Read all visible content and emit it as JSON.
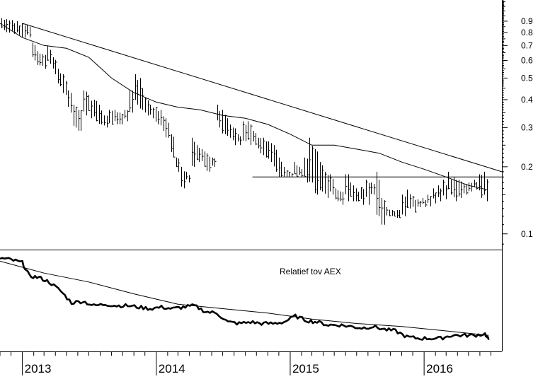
{
  "chart_data": [
    {
      "type": "line",
      "subtype": "ohlc-bars-log-price",
      "title": "",
      "xlabel": "",
      "ylabel": "",
      "y_scale": "log",
      "y_axis_side": "right",
      "ylim": [
        0.085,
        1.12
      ],
      "y_ticks": [
        0.1,
        0.2,
        0.3,
        0.4,
        0.5,
        0.6,
        0.7,
        0.8,
        0.9
      ],
      "y_tick_labels": [
        "0.1",
        "0.2",
        "0.3",
        "0.4",
        "0.5",
        "0.6",
        "0.7",
        "0.8",
        "0.9"
      ],
      "xlim": [
        "2012-11-01",
        "2016-07-31"
      ],
      "x_tick_labels": [
        "2013",
        "2014",
        "2015",
        "2016"
      ],
      "x_tick_dates": [
        "2013-01-01",
        "2014-01-01",
        "2015-01-01",
        "2016-01-01"
      ],
      "grid": false,
      "series": [
        {
          "style": "ohlc-bars",
          "x": [
            "2012-11-05",
            "2012-11-19",
            "2012-12-03",
            "2012-12-17",
            "2012-12-31",
            "2013-01-14",
            "2013-01-28",
            "2013-02-11",
            "2013-02-25",
            "2013-03-11",
            "2013-03-25",
            "2013-04-08",
            "2013-04-22",
            "2013-05-06",
            "2013-05-20",
            "2013-06-03",
            "2013-06-17",
            "2013-07-01",
            "2013-07-15",
            "2013-07-29",
            "2013-08-12",
            "2013-08-26",
            "2013-09-09",
            "2013-09-23",
            "2013-10-07",
            "2013-10-21",
            "2013-11-04",
            "2013-11-18",
            "2013-12-02",
            "2013-12-16",
            "2013-12-30",
            "2014-01-13",
            "2014-01-27",
            "2014-02-10",
            "2014-02-24",
            "2014-03-10",
            "2014-03-24",
            "2014-04-07",
            "2014-04-21",
            "2014-05-05",
            "2014-05-19",
            "2014-06-02",
            "2014-06-16",
            "2014-06-30",
            "2014-07-14",
            "2014-07-28",
            "2014-08-11",
            "2014-08-25",
            "2014-09-08",
            "2014-09-22",
            "2014-10-06",
            "2014-10-20",
            "2014-11-03",
            "2014-11-17",
            "2014-12-01",
            "2014-12-15",
            "2014-12-29",
            "2015-01-12",
            "2015-01-26",
            "2015-02-09",
            "2015-02-23",
            "2015-03-09",
            "2015-03-23",
            "2015-04-06",
            "2015-04-20",
            "2015-05-04",
            "2015-05-18",
            "2015-06-01",
            "2015-06-15",
            "2015-06-29",
            "2015-07-13",
            "2015-07-27",
            "2015-08-10",
            "2015-08-24",
            "2015-09-07",
            "2015-09-21",
            "2015-10-05",
            "2015-10-19",
            "2015-11-02",
            "2015-11-16",
            "2015-11-30",
            "2015-12-14",
            "2015-12-28",
            "2016-01-11",
            "2016-01-25",
            "2016-02-08",
            "2016-02-22",
            "2016-03-07",
            "2016-03-21",
            "2016-04-04",
            "2016-04-18",
            "2016-05-02",
            "2016-05-16",
            "2016-05-30",
            "2016-06-13"
          ],
          "high": [
            0.93,
            0.92,
            0.91,
            0.9,
            0.88,
            0.87,
            0.72,
            0.66,
            0.64,
            0.7,
            0.62,
            0.55,
            0.52,
            0.44,
            0.38,
            0.36,
            0.44,
            0.42,
            0.4,
            0.38,
            0.34,
            0.36,
            0.36,
            0.35,
            0.36,
            0.44,
            0.52,
            0.5,
            0.41,
            0.38,
            0.37,
            0.36,
            0.33,
            0.28,
            0.22,
            0.2,
            0.19,
            0.27,
            0.25,
            0.24,
            0.23,
            0.22,
            0.38,
            0.36,
            0.33,
            0.3,
            0.28,
            0.32,
            0.32,
            0.29,
            0.27,
            0.27,
            0.26,
            0.25,
            0.22,
            0.2,
            0.19,
            0.21,
            0.2,
            0.22,
            0.27,
            0.24,
            0.21,
            0.19,
            0.185,
            0.16,
            0.155,
            0.185,
            0.17,
            0.16,
            0.162,
            0.175,
            0.17,
            0.19,
            0.145,
            0.132,
            0.128,
            0.128,
            0.15,
            0.158,
            0.148,
            0.143,
            0.145,
            0.15,
            0.16,
            0.165,
            0.175,
            0.19,
            0.18,
            0.175,
            0.168,
            0.17,
            0.175,
            0.185,
            0.19
          ],
          "low": [
            0.82,
            0.8,
            0.79,
            0.78,
            0.76,
            0.76,
            0.6,
            0.57,
            0.55,
            0.58,
            0.52,
            0.46,
            0.42,
            0.35,
            0.3,
            0.29,
            0.34,
            0.33,
            0.32,
            0.31,
            0.3,
            0.31,
            0.31,
            0.31,
            0.32,
            0.35,
            0.38,
            0.36,
            0.34,
            0.33,
            0.31,
            0.29,
            0.27,
            0.22,
            0.19,
            0.16,
            0.17,
            0.2,
            0.21,
            0.2,
            0.19,
            0.2,
            0.3,
            0.28,
            0.27,
            0.25,
            0.25,
            0.26,
            0.25,
            0.25,
            0.23,
            0.22,
            0.21,
            0.19,
            0.18,
            0.18,
            0.18,
            0.18,
            0.18,
            0.17,
            0.17,
            0.15,
            0.155,
            0.145,
            0.15,
            0.14,
            0.135,
            0.14,
            0.14,
            0.14,
            0.135,
            0.135,
            0.15,
            0.12,
            0.11,
            0.12,
            0.12,
            0.118,
            0.12,
            0.13,
            0.125,
            0.132,
            0.132,
            0.133,
            0.137,
            0.14,
            0.143,
            0.15,
            0.14,
            0.145,
            0.15,
            0.155,
            0.158,
            0.145,
            0.14
          ]
        },
        {
          "style": "moving-average",
          "x": [
            "2012-11-01",
            "2013-01-01",
            "2013-03-01",
            "2013-05-01",
            "2013-07-01",
            "2013-09-01",
            "2013-11-01",
            "2014-01-01",
            "2014-03-01",
            "2014-05-01",
            "2014-07-01",
            "2014-09-01",
            "2014-11-01",
            "2015-01-01",
            "2015-03-01",
            "2015-05-01",
            "2015-07-01",
            "2015-09-01",
            "2015-11-01",
            "2016-01-01",
            "2016-03-01",
            "2016-05-01",
            "2016-06-20"
          ],
          "y": [
            0.88,
            0.76,
            0.7,
            0.68,
            0.62,
            0.5,
            0.43,
            0.39,
            0.37,
            0.36,
            0.34,
            0.33,
            0.31,
            0.28,
            0.25,
            0.25,
            0.24,
            0.23,
            0.21,
            0.195,
            0.18,
            0.165,
            0.158
          ]
        }
      ],
      "trendlines": [
        {
          "x": [
            "2013-01-01",
            "2016-07-31"
          ],
          "y": [
            0.88,
            0.19
          ]
        },
        {
          "x": [
            "2014-09-20",
            "2016-07-31"
          ],
          "y": [
            0.18,
            0.18
          ]
        }
      ]
    },
    {
      "type": "line",
      "title": "",
      "annotation": "Relatief tov AEX",
      "xlim": [
        "2012-11-01",
        "2016-07-31"
      ],
      "y_axis_visible": false,
      "grid": false,
      "series": [
        {
          "style": "thick",
          "x": [
            "2012-11-01",
            "2012-12-01",
            "2013-01-01",
            "2013-01-20",
            "2013-02-15",
            "2013-03-15",
            "2013-04-15",
            "2013-05-15",
            "2013-06-15",
            "2013-07-15",
            "2013-08-15",
            "2013-09-15",
            "2013-10-15",
            "2013-11-15",
            "2013-12-15",
            "2014-01-15",
            "2014-02-15",
            "2014-03-15",
            "2014-04-15",
            "2014-05-15",
            "2014-06-15",
            "2014-07-15",
            "2014-08-15",
            "2014-09-15",
            "2014-10-15",
            "2014-11-15",
            "2014-12-15",
            "2015-01-15",
            "2015-02-15",
            "2015-03-15",
            "2015-04-15",
            "2015-05-15",
            "2015-06-15",
            "2015-07-15",
            "2015-08-15",
            "2015-09-15",
            "2015-10-15",
            "2015-11-15",
            "2015-12-15",
            "2016-01-15",
            "2016-02-15",
            "2016-03-15",
            "2016-04-15",
            "2016-05-15",
            "2016-06-15",
            "2016-06-25"
          ],
          "y": [
            100,
            99,
            97,
            88,
            87,
            84,
            78,
            70,
            71,
            68,
            69,
            68,
            68,
            67,
            66,
            67,
            66,
            67,
            68,
            64,
            63,
            57,
            56,
            57,
            56,
            56,
            57,
            61,
            58,
            57,
            55,
            55,
            54,
            53,
            54,
            52,
            51,
            47,
            46,
            46,
            46,
            48,
            48,
            48,
            49,
            45
          ]
        },
        {
          "style": "thin-moving-average",
          "x": [
            "2012-11-01",
            "2013-03-01",
            "2013-07-01",
            "2013-11-01",
            "2014-03-01",
            "2014-07-01",
            "2014-11-01",
            "2015-03-01",
            "2015-07-01",
            "2015-11-01",
            "2016-03-01",
            "2016-06-25"
          ],
          "y": [
            98,
            90,
            84,
            76,
            69,
            66,
            63,
            59,
            56,
            54,
            51,
            48
          ]
        }
      ]
    }
  ]
}
